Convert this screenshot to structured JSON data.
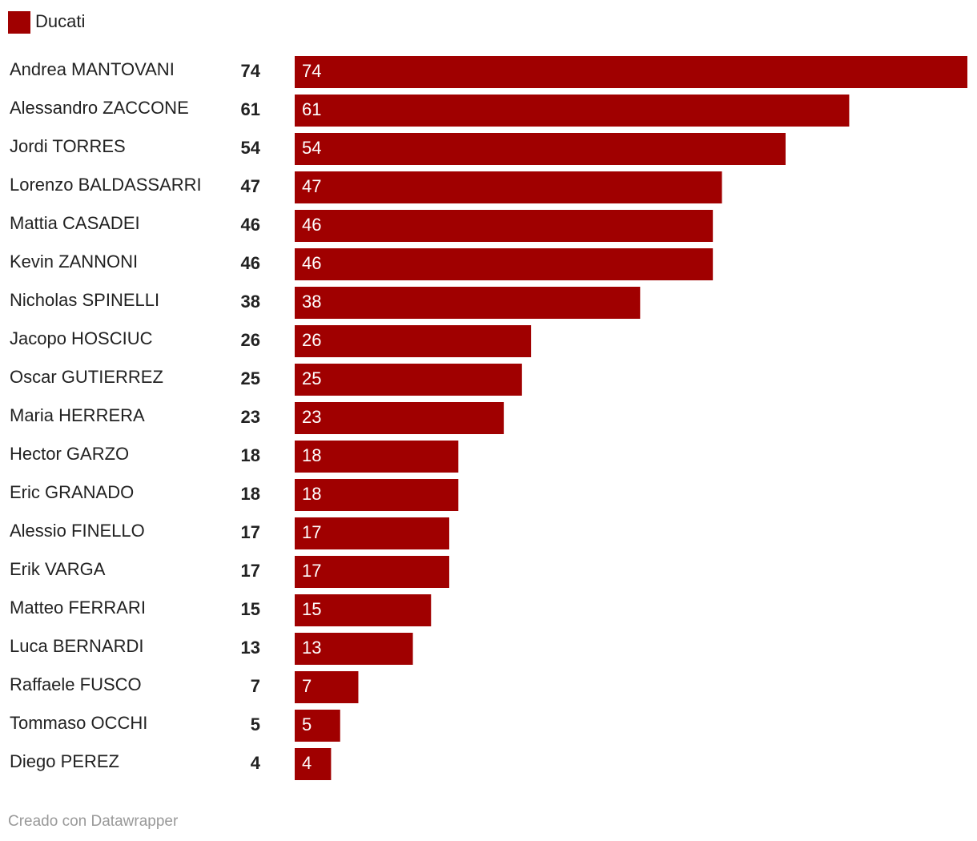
{
  "chart_data": {
    "type": "bar",
    "orientation": "horizontal",
    "categories": [
      "Andrea MANTOVANI",
      "Alessandro ZACCONE",
      "Jordi TORRES",
      "Lorenzo BALDASSARRI",
      "Mattia CASADEI",
      "Kevin ZANNONI",
      "Nicholas SPINELLI",
      "Jacopo HOSCIUC",
      "Oscar GUTIERREZ",
      "Maria HERRERA",
      "Hector GARZO",
      "Eric GRANADO",
      "Alessio FINELLO",
      "Erik VARGA",
      "Matteo FERRARI",
      "Luca BERNARDI",
      "Raffaele FUSCO",
      "Tommaso OCCHI",
      "Diego PEREZ"
    ],
    "series": [
      {
        "name": "Ducati",
        "color": "#a00000",
        "values": [
          74,
          61,
          54,
          47,
          46,
          46,
          38,
          26,
          25,
          23,
          18,
          18,
          17,
          17,
          15,
          13,
          7,
          5,
          4
        ]
      }
    ],
    "source": "Creado con Datawrapper"
  }
}
